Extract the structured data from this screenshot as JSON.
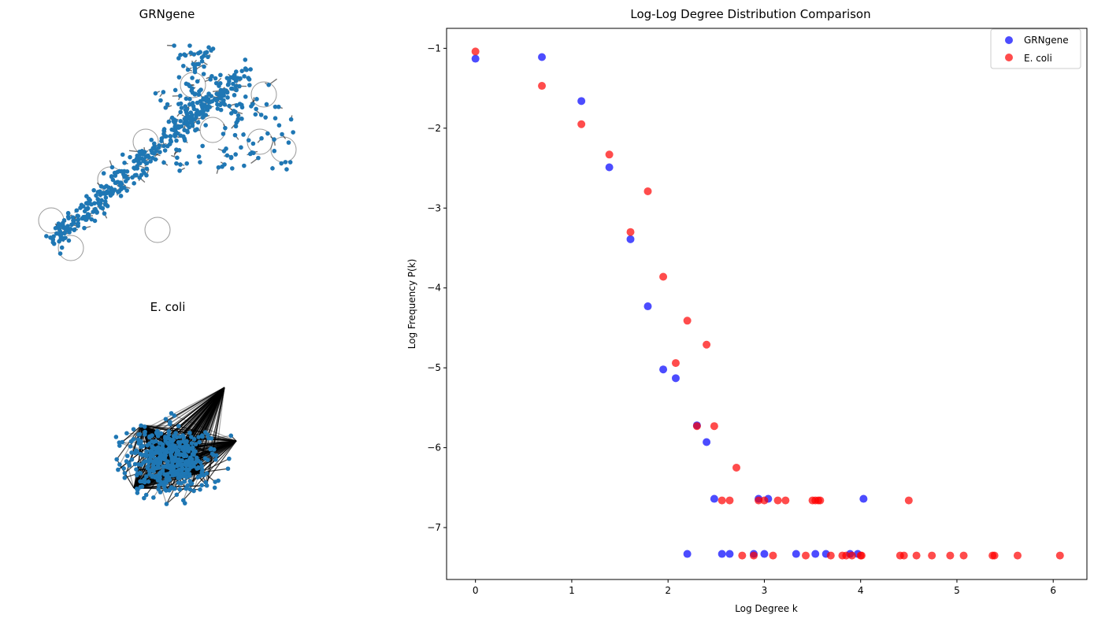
{
  "graphs": [
    {
      "title": "GRNgene"
    },
    {
      "title": "E. coli"
    }
  ],
  "chart_data": {
    "type": "scatter",
    "title": "Log-Log Degree Distribution Comparison",
    "xlabel": "Log Degree k",
    "ylabel": "Log Frequency P(k)",
    "xlim": [
      -0.3,
      6.35
    ],
    "ylim": [
      -7.65,
      -0.75
    ],
    "xticks": [
      0,
      1,
      2,
      3,
      4,
      5,
      6
    ],
    "yticks": [
      -1,
      -2,
      -3,
      -4,
      -5,
      -6,
      -7
    ],
    "grid": false,
    "legend_position": "top-right",
    "series": [
      {
        "name": "GRNgene",
        "color": "#0000ff",
        "points": [
          [
            0.0,
            -1.13
          ],
          [
            0.69,
            -1.11
          ],
          [
            1.1,
            -1.66
          ],
          [
            1.39,
            -2.49
          ],
          [
            1.61,
            -3.39
          ],
          [
            1.79,
            -4.23
          ],
          [
            1.95,
            -5.02
          ],
          [
            2.08,
            -5.13
          ],
          [
            2.3,
            -5.72
          ],
          [
            2.4,
            -5.93
          ],
          [
            2.48,
            -6.64
          ],
          [
            2.94,
            -6.64
          ],
          [
            3.04,
            -6.64
          ],
          [
            4.03,
            -6.64
          ],
          [
            2.2,
            -7.33
          ],
          [
            2.56,
            -7.33
          ],
          [
            2.64,
            -7.33
          ],
          [
            2.89,
            -7.33
          ],
          [
            3.0,
            -7.33
          ],
          [
            3.33,
            -7.33
          ],
          [
            3.53,
            -7.33
          ],
          [
            3.64,
            -7.33
          ],
          [
            3.89,
            -7.33
          ],
          [
            3.97,
            -7.33
          ]
        ]
      },
      {
        "name": "E. coli",
        "color": "#ff0000",
        "points": [
          [
            0.0,
            -1.04
          ],
          [
            0.69,
            -1.47
          ],
          [
            1.1,
            -1.95
          ],
          [
            1.39,
            -2.33
          ],
          [
            1.79,
            -2.79
          ],
          [
            1.61,
            -3.3
          ],
          [
            1.95,
            -3.86
          ],
          [
            2.2,
            -4.41
          ],
          [
            2.4,
            -4.71
          ],
          [
            2.08,
            -4.94
          ],
          [
            2.3,
            -5.73
          ],
          [
            2.48,
            -5.73
          ],
          [
            2.71,
            -6.25
          ],
          [
            2.56,
            -6.66
          ],
          [
            2.64,
            -6.66
          ],
          [
            2.94,
            -6.66
          ],
          [
            3.0,
            -6.66
          ],
          [
            3.14,
            -6.66
          ],
          [
            3.22,
            -6.66
          ],
          [
            3.5,
            -6.66
          ],
          [
            3.53,
            -6.66
          ],
          [
            3.56,
            -6.66
          ],
          [
            3.58,
            -6.66
          ],
          [
            4.5,
            -6.66
          ],
          [
            2.77,
            -7.35
          ],
          [
            2.89,
            -7.35
          ],
          [
            3.09,
            -7.35
          ],
          [
            3.43,
            -7.35
          ],
          [
            3.69,
            -7.35
          ],
          [
            3.81,
            -7.35
          ],
          [
            3.85,
            -7.35
          ],
          [
            3.91,
            -7.35
          ],
          [
            4.0,
            -7.35
          ],
          [
            4.01,
            -7.35
          ],
          [
            4.41,
            -7.35
          ],
          [
            4.45,
            -7.35
          ],
          [
            4.58,
            -7.35
          ],
          [
            4.74,
            -7.35
          ],
          [
            4.93,
            -7.35
          ],
          [
            5.07,
            -7.35
          ],
          [
            5.37,
            -7.35
          ],
          [
            5.39,
            -7.35
          ],
          [
            5.63,
            -7.35
          ],
          [
            6.07,
            -7.35
          ]
        ]
      }
    ]
  }
}
